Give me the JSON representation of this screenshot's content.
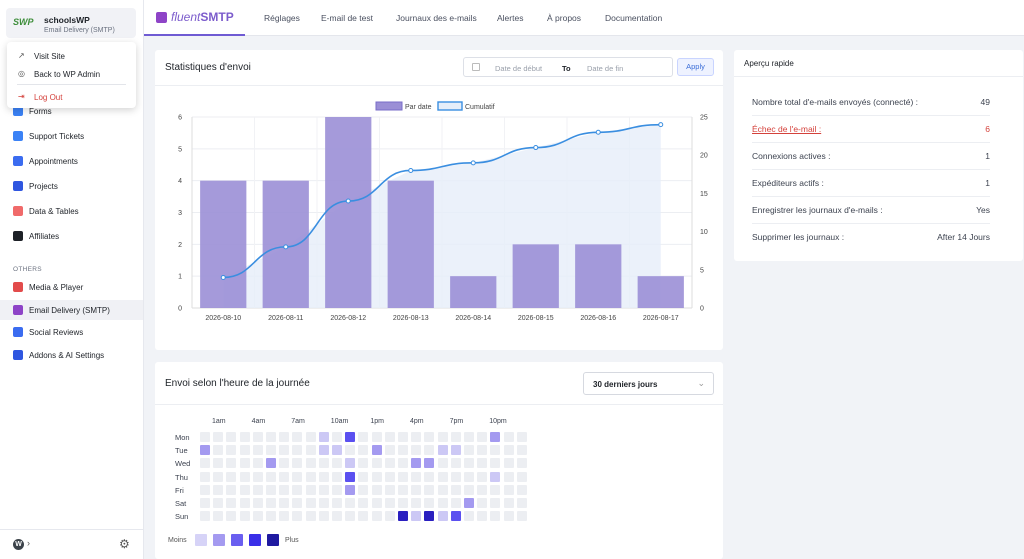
{
  "sidebar": {
    "site_logo": "SWP",
    "site_name": "schoolsWP",
    "site_sub": "Email Delivery (SMTP)",
    "dropdown": [
      {
        "label": "Visit Site",
        "icon": "external-link-icon"
      },
      {
        "label": "Back to WP Admin",
        "icon": "wordpress-icon"
      },
      {
        "label": "Log Out",
        "icon": "logout-icon"
      }
    ],
    "items": [
      {
        "label": "Forms",
        "color": "#3b82f6"
      },
      {
        "label": "Support Tickets",
        "color": "#3b82f6"
      },
      {
        "label": "Appointments",
        "color": "#3b6cf0"
      },
      {
        "label": "Projects",
        "color": "#2f56e0"
      },
      {
        "label": "Data & Tables",
        "color": "#f06a6a"
      },
      {
        "label": "Affiliates",
        "color": "#1d2127"
      }
    ],
    "others_heading": "OTHERS",
    "others": [
      {
        "label": "Media & Player",
        "color": "#e24b4b"
      },
      {
        "label": "Email Delivery (SMTP)",
        "color": "#8e44c7",
        "active": true
      },
      {
        "label": "Social Reviews",
        "color": "#3b6cf0"
      },
      {
        "label": "Addons & AI Settings",
        "color": "#2f56e0"
      }
    ]
  },
  "topbar": {
    "brand_fluent": "fluent",
    "brand_smtp": "SMTP",
    "tabs": [
      "Réglages",
      "E-mail de test",
      "Journaux des e-mails",
      "Alertes",
      "À propos",
      "Documentation"
    ]
  },
  "stats": {
    "title": "Statistiques d'envoi",
    "date_start_placeholder": "Date de début",
    "to_label": "To",
    "date_end_placeholder": "Date de fin",
    "apply_label": "Apply"
  },
  "chart_data": {
    "type": "bar",
    "categories": [
      "2026-08-10",
      "2026-08-11",
      "2026-08-12",
      "2026-08-13",
      "2026-08-14",
      "2026-08-15",
      "2026-08-16",
      "2026-08-17"
    ],
    "series": [
      {
        "name": "Par date",
        "type": "bar",
        "values": [
          4,
          4,
          6,
          4,
          1,
          2,
          2,
          1
        ],
        "color": "#9b8fd6"
      },
      {
        "name": "Cumulatif",
        "type": "line",
        "axis": "right",
        "values": [
          4,
          8,
          14,
          18,
          19,
          21,
          23,
          24
        ],
        "color": "#3a8ee0"
      }
    ],
    "ylim": [
      0,
      6
    ],
    "yticks": [
      "0",
      "1",
      "2",
      "3",
      "4",
      "5",
      "6"
    ],
    "y2lim": [
      0,
      25
    ],
    "y2ticks": [
      "0",
      "5",
      "10",
      "15",
      "20",
      "25"
    ],
    "legend_position": "top"
  },
  "quick": {
    "title": "Aperçu rapide",
    "rows": [
      {
        "label": "Nombre total d'e-mails envoyés (connecté) :",
        "value": "49"
      },
      {
        "label": "Échec de l'e-mail :",
        "value": "6",
        "error": true
      },
      {
        "label": "Connexions actives :",
        "value": "1"
      },
      {
        "label": "Expéditeurs actifs :",
        "value": "1"
      },
      {
        "label": "Enregistrer les journaux d'e-mails :",
        "value": "Yes"
      },
      {
        "label": "Supprimer les journaux :",
        "value": "After 14 Jours"
      }
    ]
  },
  "heatmap": {
    "title": "Envoi selon l'heure de la journée",
    "period": "30 derniers jours",
    "hour_labels": [
      "1am",
      "4am",
      "7am",
      "10am",
      "1pm",
      "4pm",
      "7pm",
      "10pm"
    ],
    "days": [
      "Mon",
      "Tue",
      "Wed",
      "Thu",
      "Fri",
      "Sat",
      "Sun"
    ],
    "levels": [
      [
        0,
        0,
        0,
        0,
        0,
        0,
        0,
        0,
        0,
        1,
        0,
        3,
        0,
        0,
        0,
        0,
        0,
        0,
        0,
        0,
        0,
        0,
        2,
        0,
        0
      ],
      [
        2,
        0,
        0,
        0,
        0,
        0,
        0,
        0,
        0,
        1,
        1,
        0,
        0,
        2,
        0,
        0,
        0,
        0,
        1,
        1,
        0,
        0,
        0,
        0,
        0
      ],
      [
        0,
        0,
        0,
        0,
        0,
        2,
        0,
        0,
        0,
        0,
        0,
        1,
        0,
        0,
        0,
        0,
        2,
        2,
        0,
        0,
        0,
        0,
        0,
        0,
        0
      ],
      [
        0,
        0,
        0,
        0,
        0,
        0,
        0,
        0,
        0,
        0,
        0,
        3,
        0,
        0,
        0,
        0,
        0,
        0,
        0,
        0,
        0,
        0,
        1,
        0,
        0
      ],
      [
        0,
        0,
        0,
        0,
        0,
        0,
        0,
        0,
        0,
        0,
        0,
        2,
        0,
        0,
        0,
        0,
        0,
        0,
        0,
        0,
        0,
        0,
        0,
        0,
        0
      ],
      [
        0,
        0,
        0,
        0,
        0,
        0,
        0,
        0,
        0,
        0,
        0,
        0,
        0,
        0,
        0,
        0,
        0,
        0,
        0,
        0,
        2,
        0,
        0,
        0,
        0
      ],
      [
        0,
        0,
        0,
        0,
        0,
        0,
        0,
        0,
        0,
        0,
        0,
        0,
        0,
        0,
        0,
        4,
        1,
        4,
        1,
        3,
        0,
        0,
        0,
        0,
        0
      ]
    ],
    "colors": [
      "#eceef2",
      "#ccc8f5",
      "#a49af0",
      "#5b50f0",
      "#2a1fc0"
    ],
    "legend_colors": [
      "#d6d3f7",
      "#a49af0",
      "#6a5ff0",
      "#3a2fe8",
      "#1f1aa0"
    ],
    "legend_min": "Moins",
    "legend_max": "Plus"
  }
}
